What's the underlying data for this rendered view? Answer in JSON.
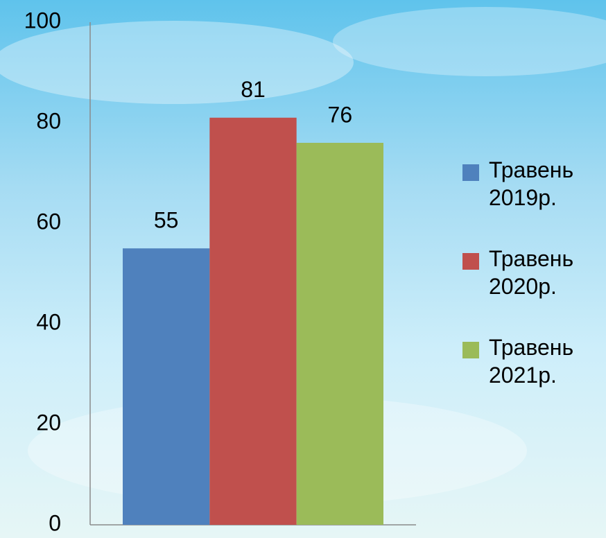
{
  "chart_data": {
    "type": "bar",
    "categories": [
      null
    ],
    "series": [
      {
        "name": "Травень 2019р.",
        "color": "#4f81bd",
        "values": [
          55
        ]
      },
      {
        "name": "Травень 2020р.",
        "color": "#c0504d",
        "values": [
          81
        ]
      },
      {
        "name": "Травень 2021р.",
        "color": "#9bbb59",
        "values": [
          76
        ]
      }
    ],
    "ylim": [
      0,
      100
    ],
    "yticks": [
      0,
      20,
      40,
      60,
      80,
      100
    ],
    "grid": false,
    "legend": "right",
    "data_labels": true
  }
}
